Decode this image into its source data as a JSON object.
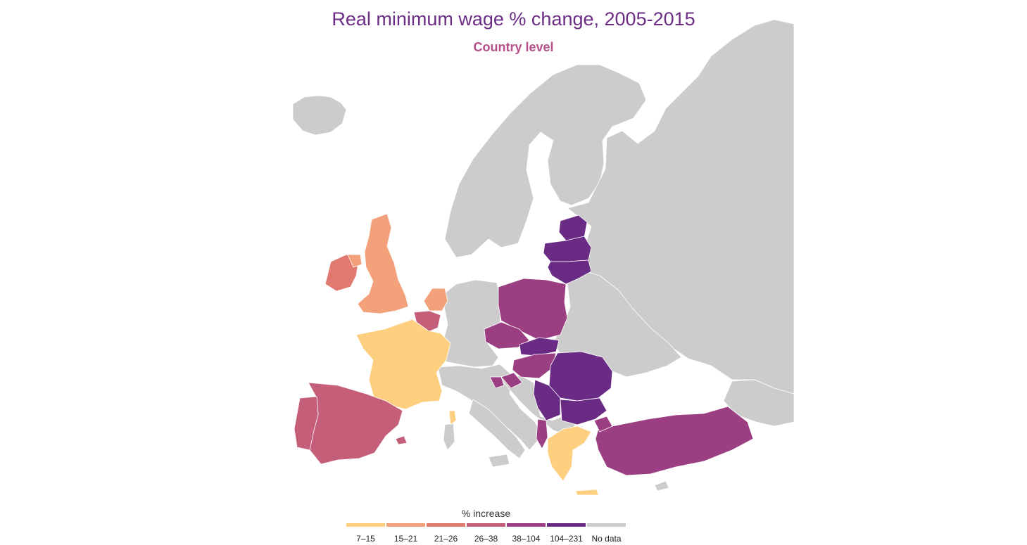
{
  "title": "Real minimum wage % change, 2005-2015",
  "subtitle": "Country level",
  "legend": {
    "title": "% increase",
    "bins": [
      {
        "label": "7–15",
        "color": "#fecf7f"
      },
      {
        "label": "15–21",
        "color": "#f2a17a"
      },
      {
        "label": "21–26",
        "color": "#e07a70"
      },
      {
        "label": "26–38",
        "color": "#c45e79"
      },
      {
        "label": "38–104",
        "color": "#9b3f82"
      },
      {
        "label": "104–231",
        "color": "#6a2b84"
      },
      {
        "label": "No data",
        "color": "#cccccc"
      }
    ]
  },
  "countries": [
    {
      "name": "France",
      "bin": "7–15"
    },
    {
      "name": "Greece",
      "bin": "7–15"
    },
    {
      "name": "Corsica",
      "bin": "7–15"
    },
    {
      "name": "United Kingdom",
      "bin": "15–21"
    },
    {
      "name": "Netherlands",
      "bin": "15–21"
    },
    {
      "name": "Ireland",
      "bin": "21–26"
    },
    {
      "name": "Spain",
      "bin": "26–38"
    },
    {
      "name": "Portugal",
      "bin": "26–38"
    },
    {
      "name": "Belgium",
      "bin": "26–38"
    },
    {
      "name": "Poland",
      "bin": "38–104"
    },
    {
      "name": "Czech Republic",
      "bin": "38–104"
    },
    {
      "name": "Hungary",
      "bin": "38–104"
    },
    {
      "name": "Slovenia",
      "bin": "38–104"
    },
    {
      "name": "Croatia",
      "bin": "38–104"
    },
    {
      "name": "Turkey",
      "bin": "38–104"
    },
    {
      "name": "Albania",
      "bin": "38–104"
    },
    {
      "name": "Estonia",
      "bin": "104–231"
    },
    {
      "name": "Latvia",
      "bin": "104–231"
    },
    {
      "name": "Lithuania",
      "bin": "104–231"
    },
    {
      "name": "Slovakia",
      "bin": "104–231"
    },
    {
      "name": "Romania",
      "bin": "104–231"
    },
    {
      "name": "Bulgaria",
      "bin": "104–231"
    },
    {
      "name": "Serbia",
      "bin": "104–231"
    }
  ]
}
